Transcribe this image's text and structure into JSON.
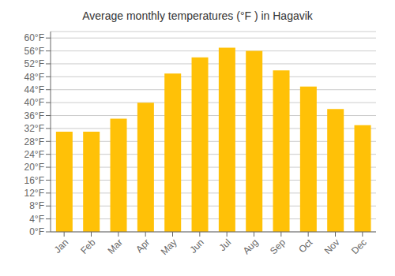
{
  "chart_data": {
    "type": "bar",
    "title": "Average monthly temperatures (°F ) in Hagavik",
    "categories": [
      "Jan",
      "Feb",
      "Mar",
      "Apr",
      "May",
      "Jun",
      "Jul",
      "Aug",
      "Sep",
      "Oct",
      "Nov",
      "Dec"
    ],
    "values": [
      31,
      31,
      35,
      40,
      49,
      54,
      57,
      56,
      50,
      45,
      38,
      33
    ],
    "color": "#FFC107",
    "ylim": [
      0,
      62
    ],
    "yticks": [
      {
        "value": 0,
        "label": "0°F"
      },
      {
        "value": 4,
        "label": "4°F"
      },
      {
        "value": 8,
        "label": "8°F"
      },
      {
        "value": 12,
        "label": "12°F"
      },
      {
        "value": 16,
        "label": "16°F"
      },
      {
        "value": 20,
        "label": "20°F"
      },
      {
        "value": 24,
        "label": "24°F"
      },
      {
        "value": 28,
        "label": "28°F"
      },
      {
        "value": 32,
        "label": "32°F"
      },
      {
        "value": 36,
        "label": "36°F"
      },
      {
        "value": 40,
        "label": "40°F"
      },
      {
        "value": 44,
        "label": "44°F"
      },
      {
        "value": 48,
        "label": "48°F"
      },
      {
        "value": 52,
        "label": "52°F"
      },
      {
        "value": 56,
        "label": "56°F"
      },
      {
        "value": 60,
        "label": "60°F"
      }
    ],
    "grid": true
  }
}
